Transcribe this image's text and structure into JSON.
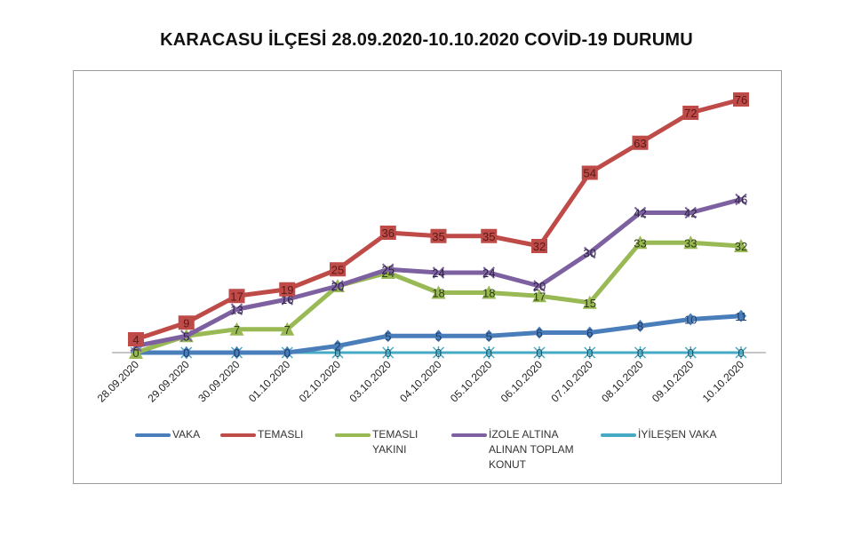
{
  "title": "KARACASU İLÇESİ 28.09.2020-10.10.2020 COVİD-19 DURUMU",
  "chart_data": {
    "type": "line",
    "title": "KARACASU İLÇESİ 28.09.2020-10.10.2020 COVİD-19 DURUMU",
    "xlabel": "",
    "ylabel": "",
    "ylim": [
      0,
      80
    ],
    "grid": false,
    "legend_position": "bottom",
    "categories": [
      "28.09.2020",
      "29.09.2020",
      "30.09.2020",
      "01.10.2020",
      "02.10.2020",
      "03.10.2020",
      "04.10.2020",
      "05.10.2020",
      "06.10.2020",
      "07.10.2020",
      "08.10.2020",
      "09.10.2020",
      "10.10.2020"
    ],
    "series": [
      {
        "name": "VAKA",
        "color": "#4a7ebb",
        "marker": "diamond",
        "values": [
          0,
          0,
          0,
          0,
          2,
          5,
          5,
          5,
          6,
          6,
          8,
          10,
          11
        ]
      },
      {
        "name": "TEMASLI",
        "color": "#be4b48",
        "marker": "square",
        "values": [
          4,
          9,
          17,
          19,
          25,
          36,
          35,
          35,
          32,
          54,
          63,
          72,
          76
        ]
      },
      {
        "name": "TEMASLI YAKINI",
        "color": "#98b954",
        "marker": "triangle",
        "values": [
          0,
          5,
          7,
          7,
          20,
          24,
          18,
          18,
          17,
          15,
          33,
          33,
          32
        ]
      },
      {
        "name": "İZOLE ALTINA ALINAN TOPLAM KONUT",
        "color": "#7d60a0",
        "marker": "x",
        "values": [
          2,
          5,
          13,
          16,
          20,
          25,
          24,
          24,
          20,
          30,
          42,
          42,
          46
        ]
      },
      {
        "name": "İYİLEŞEN VAKA",
        "color": "#46aac5",
        "marker": "star",
        "values": [
          0,
          0,
          0,
          0,
          0,
          0,
          0,
          0,
          0,
          0,
          0,
          0,
          0
        ]
      }
    ]
  },
  "legend": [
    {
      "label": "VAKA",
      "color": "#4a7ebb"
    },
    {
      "label": "TEMASLI",
      "color": "#be4b48"
    },
    {
      "label": "TEMASLI\nYAKINI",
      "color": "#98b954"
    },
    {
      "label": "İZOLE ALTINA\nALINAN TOPLAM\nKONUT",
      "color": "#7d60a0"
    },
    {
      "label": "İYİLEŞEN VAKA",
      "color": "#46aac5"
    }
  ]
}
